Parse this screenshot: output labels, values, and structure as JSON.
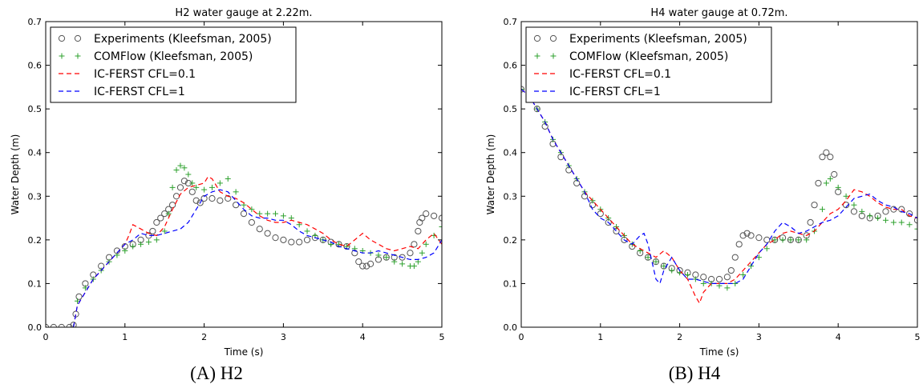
{
  "figure": {
    "captions": [
      "(A) H2",
      "(B) H4"
    ]
  },
  "chart_data": [
    {
      "type": "line",
      "title": "H2 water gauge at 2.22m.",
      "xlabel": "Time (s)",
      "ylabel": "Water Depth (m)",
      "xlim": [
        0,
        5
      ],
      "ylim": [
        0,
        0.7
      ],
      "xticks": [
        "0",
        "1",
        "2",
        "3",
        "4",
        "5"
      ],
      "yticks": [
        "0.0",
        "0.1",
        "0.2",
        "0.3",
        "0.4",
        "0.5",
        "0.6",
        "0.7"
      ],
      "grid": false,
      "legend_position": "top-left",
      "series": [
        {
          "name": "Experiments (Kleefsman, 2005)",
          "marker": "circle",
          "color": "#555555",
          "x": [
            0.0,
            0.1,
            0.2,
            0.3,
            0.35,
            0.38,
            0.42,
            0.5,
            0.6,
            0.7,
            0.8,
            0.9,
            1.0,
            1.1,
            1.2,
            1.3,
            1.35,
            1.4,
            1.45,
            1.5,
            1.55,
            1.6,
            1.65,
            1.7,
            1.75,
            1.8,
            1.85,
            1.9,
            1.95,
            2.0,
            2.1,
            2.2,
            2.3,
            2.4,
            2.5,
            2.6,
            2.7,
            2.8,
            2.9,
            3.0,
            3.1,
            3.2,
            3.3,
            3.4,
            3.5,
            3.6,
            3.7,
            3.8,
            3.9,
            3.95,
            4.0,
            4.05,
            4.1,
            4.2,
            4.3,
            4.4,
            4.5,
            4.6,
            4.65,
            4.7,
            4.72,
            4.75,
            4.8,
            4.9,
            5.0
          ],
          "y": [
            0.0,
            0.0,
            0.0,
            0.0,
            0.005,
            0.03,
            0.07,
            0.1,
            0.12,
            0.14,
            0.16,
            0.175,
            0.185,
            0.19,
            0.2,
            0.21,
            0.22,
            0.24,
            0.25,
            0.26,
            0.27,
            0.28,
            0.3,
            0.32,
            0.335,
            0.33,
            0.31,
            0.29,
            0.285,
            0.295,
            0.295,
            0.29,
            0.295,
            0.28,
            0.26,
            0.24,
            0.225,
            0.215,
            0.205,
            0.2,
            0.195,
            0.195,
            0.2,
            0.205,
            0.2,
            0.195,
            0.19,
            0.185,
            0.17,
            0.15,
            0.14,
            0.14,
            0.145,
            0.155,
            0.16,
            0.16,
            0.16,
            0.17,
            0.19,
            0.22,
            0.24,
            0.25,
            0.26,
            0.255,
            0.25
          ]
        },
        {
          "name": "COMFlow (Kleefsman, 2005)",
          "marker": "plus",
          "color": "#2ca02c",
          "x": [
            0.35,
            0.4,
            0.5,
            0.6,
            0.7,
            0.8,
            0.9,
            1.0,
            1.1,
            1.2,
            1.3,
            1.4,
            1.5,
            1.55,
            1.6,
            1.65,
            1.7,
            1.75,
            1.8,
            1.85,
            1.9,
            2.0,
            2.1,
            2.2,
            2.3,
            2.4,
            2.5,
            2.6,
            2.7,
            2.8,
            2.9,
            3.0,
            3.1,
            3.2,
            3.3,
            3.4,
            3.5,
            3.6,
            3.7,
            3.8,
            3.9,
            4.0,
            4.1,
            4.2,
            4.3,
            4.4,
            4.5,
            4.6,
            4.65,
            4.7,
            4.75,
            4.8,
            4.9,
            5.0
          ],
          "y": [
            0.0,
            0.06,
            0.09,
            0.11,
            0.13,
            0.15,
            0.165,
            0.175,
            0.185,
            0.19,
            0.195,
            0.2,
            0.22,
            0.26,
            0.32,
            0.36,
            0.37,
            0.365,
            0.35,
            0.33,
            0.32,
            0.315,
            0.32,
            0.33,
            0.34,
            0.31,
            0.28,
            0.27,
            0.26,
            0.26,
            0.26,
            0.255,
            0.25,
            0.235,
            0.22,
            0.21,
            0.2,
            0.19,
            0.19,
            0.185,
            0.18,
            0.175,
            0.17,
            0.165,
            0.16,
            0.15,
            0.145,
            0.14,
            0.14,
            0.15,
            0.17,
            0.19,
            0.21,
            0.23
          ]
        },
        {
          "name": "IC-FERST CFL=0.1",
          "marker": "dash",
          "color": "#ff0000",
          "x": [
            0.35,
            0.4,
            0.5,
            0.6,
            0.7,
            0.8,
            0.9,
            1.0,
            1.05,
            1.1,
            1.2,
            1.3,
            1.4,
            1.5,
            1.6,
            1.7,
            1.8,
            1.9,
            2.0,
            2.05,
            2.1,
            2.2,
            2.3,
            2.4,
            2.5,
            2.6,
            2.7,
            2.8,
            2.9,
            3.0,
            3.1,
            3.2,
            3.3,
            3.4,
            3.5,
            3.6,
            3.7,
            3.8,
            3.9,
            4.0,
            4.1,
            4.2,
            4.3,
            4.4,
            4.5,
            4.6,
            4.7,
            4.8,
            4.9,
            5.0
          ],
          "y": [
            0.0,
            0.05,
            0.08,
            0.11,
            0.13,
            0.15,
            0.17,
            0.19,
            0.21,
            0.235,
            0.225,
            0.215,
            0.21,
            0.23,
            0.27,
            0.305,
            0.32,
            0.325,
            0.33,
            0.345,
            0.34,
            0.31,
            0.3,
            0.295,
            0.285,
            0.27,
            0.255,
            0.245,
            0.24,
            0.24,
            0.245,
            0.24,
            0.235,
            0.225,
            0.215,
            0.2,
            0.19,
            0.185,
            0.2,
            0.215,
            0.2,
            0.19,
            0.18,
            0.175,
            0.18,
            0.185,
            0.18,
            0.2,
            0.215,
            0.19
          ]
        },
        {
          "name": "IC-FERST CFL=1",
          "marker": "dash",
          "color": "#0000ff",
          "x": [
            0.35,
            0.4,
            0.5,
            0.6,
            0.7,
            0.8,
            0.9,
            1.0,
            1.1,
            1.2,
            1.3,
            1.4,
            1.5,
            1.6,
            1.7,
            1.8,
            1.9,
            2.0,
            2.1,
            2.2,
            2.3,
            2.4,
            2.5,
            2.6,
            2.7,
            2.8,
            2.9,
            3.0,
            3.1,
            3.2,
            3.3,
            3.4,
            3.5,
            3.6,
            3.7,
            3.8,
            3.9,
            4.0,
            4.1,
            4.2,
            4.3,
            4.4,
            4.5,
            4.6,
            4.7,
            4.8,
            4.9,
            5.0
          ],
          "y": [
            0.0,
            0.05,
            0.08,
            0.11,
            0.13,
            0.15,
            0.17,
            0.19,
            0.2,
            0.215,
            0.21,
            0.21,
            0.215,
            0.22,
            0.225,
            0.24,
            0.27,
            0.3,
            0.31,
            0.315,
            0.31,
            0.29,
            0.27,
            0.255,
            0.25,
            0.25,
            0.245,
            0.245,
            0.235,
            0.22,
            0.21,
            0.205,
            0.2,
            0.195,
            0.185,
            0.18,
            0.175,
            0.17,
            0.17,
            0.175,
            0.17,
            0.165,
            0.16,
            0.155,
            0.155,
            0.16,
            0.17,
            0.2
          ]
        }
      ]
    },
    {
      "type": "line",
      "title": "H4 water gauge at 0.72m.",
      "xlabel": "Time (s)",
      "ylabel": "Water Depth (m)",
      "xlim": [
        0,
        5
      ],
      "ylim": [
        0,
        0.7
      ],
      "xticks": [
        "0",
        "1",
        "2",
        "3",
        "4",
        "5"
      ],
      "yticks": [
        "0.0",
        "0.1",
        "0.2",
        "0.3",
        "0.4",
        "0.5",
        "0.6",
        "0.7"
      ],
      "grid": false,
      "legend_position": "top-left",
      "series": [
        {
          "name": "Experiments (Kleefsman, 2005)",
          "marker": "circle",
          "color": "#555555",
          "x": [
            0.0,
            0.1,
            0.2,
            0.3,
            0.4,
            0.5,
            0.6,
            0.7,
            0.8,
            0.9,
            1.0,
            1.1,
            1.2,
            1.3,
            1.4,
            1.5,
            1.6,
            1.7,
            1.8,
            1.9,
            2.0,
            2.1,
            2.2,
            2.3,
            2.4,
            2.5,
            2.6,
            2.65,
            2.7,
            2.75,
            2.8,
            2.85,
            2.9,
            3.0,
            3.1,
            3.2,
            3.3,
            3.4,
            3.5,
            3.6,
            3.65,
            3.7,
            3.75,
            3.8,
            3.85,
            3.9,
            3.95,
            4.0,
            4.1,
            4.2,
            4.3,
            4.4,
            4.5,
            4.6,
            4.7,
            4.8,
            4.9,
            5.0
          ],
          "y": [
            0.545,
            0.53,
            0.5,
            0.46,
            0.42,
            0.39,
            0.36,
            0.33,
            0.3,
            0.28,
            0.26,
            0.24,
            0.22,
            0.2,
            0.185,
            0.17,
            0.16,
            0.15,
            0.14,
            0.135,
            0.13,
            0.125,
            0.12,
            0.115,
            0.11,
            0.11,
            0.115,
            0.13,
            0.16,
            0.19,
            0.21,
            0.215,
            0.21,
            0.205,
            0.2,
            0.2,
            0.205,
            0.2,
            0.2,
            0.21,
            0.24,
            0.28,
            0.33,
            0.39,
            0.4,
            0.39,
            0.35,
            0.31,
            0.28,
            0.265,
            0.255,
            0.25,
            0.255,
            0.265,
            0.27,
            0.27,
            0.26,
            0.245
          ]
        },
        {
          "name": "COMFlow (Kleefsman, 2005)",
          "marker": "plus",
          "color": "#2ca02c",
          "x": [
            0.0,
            0.1,
            0.2,
            0.3,
            0.4,
            0.5,
            0.6,
            0.7,
            0.8,
            0.9,
            1.0,
            1.1,
            1.2,
            1.3,
            1.4,
            1.5,
            1.6,
            1.7,
            1.8,
            1.9,
            2.0,
            2.1,
            2.2,
            2.3,
            2.4,
            2.5,
            2.6,
            2.7,
            2.8,
            2.9,
            3.0,
            3.1,
            3.2,
            3.3,
            3.4,
            3.5,
            3.6,
            3.7,
            3.8,
            3.85,
            3.9,
            4.0,
            4.1,
            4.2,
            4.3,
            4.4,
            4.5,
            4.6,
            4.7,
            4.8,
            4.9,
            5.0
          ],
          "y": [
            0.545,
            0.53,
            0.5,
            0.47,
            0.43,
            0.4,
            0.37,
            0.34,
            0.31,
            0.29,
            0.27,
            0.25,
            0.23,
            0.21,
            0.19,
            0.175,
            0.16,
            0.15,
            0.14,
            0.13,
            0.125,
            0.12,
            0.11,
            0.1,
            0.1,
            0.095,
            0.09,
            0.1,
            0.12,
            0.14,
            0.16,
            0.18,
            0.2,
            0.2,
            0.2,
            0.2,
            0.2,
            0.22,
            0.27,
            0.33,
            0.34,
            0.32,
            0.3,
            0.28,
            0.265,
            0.255,
            0.25,
            0.245,
            0.24,
            0.24,
            0.235,
            0.225
          ]
        },
        {
          "name": "IC-FERST CFL=0.1",
          "marker": "dash",
          "color": "#ff0000",
          "x": [
            0.0,
            0.1,
            0.2,
            0.3,
            0.4,
            0.5,
            0.6,
            0.7,
            0.8,
            0.9,
            1.0,
            1.1,
            1.2,
            1.3,
            1.4,
            1.5,
            1.6,
            1.7,
            1.8,
            1.9,
            2.0,
            2.1,
            2.2,
            2.25,
            2.3,
            2.4,
            2.5,
            2.6,
            2.7,
            2.8,
            2.9,
            3.0,
            3.1,
            3.2,
            3.3,
            3.4,
            3.5,
            3.6,
            3.7,
            3.8,
            3.9,
            4.0,
            4.1,
            4.2,
            4.3,
            4.4,
            4.5,
            4.6,
            4.7,
            4.8,
            4.9,
            5.0
          ],
          "y": [
            0.545,
            0.53,
            0.5,
            0.47,
            0.43,
            0.4,
            0.37,
            0.34,
            0.31,
            0.29,
            0.27,
            0.25,
            0.23,
            0.21,
            0.19,
            0.18,
            0.17,
            0.16,
            0.175,
            0.16,
            0.13,
            0.11,
            0.07,
            0.055,
            0.08,
            0.1,
            0.1,
            0.1,
            0.11,
            0.13,
            0.15,
            0.17,
            0.19,
            0.2,
            0.215,
            0.22,
            0.215,
            0.21,
            0.22,
            0.24,
            0.26,
            0.27,
            0.29,
            0.315,
            0.31,
            0.3,
            0.285,
            0.275,
            0.27,
            0.27,
            0.255,
            0.25
          ]
        },
        {
          "name": "IC-FERST CFL=1",
          "marker": "dash",
          "color": "#0000ff",
          "x": [
            0.0,
            0.1,
            0.2,
            0.3,
            0.4,
            0.5,
            0.6,
            0.7,
            0.8,
            0.9,
            1.0,
            1.1,
            1.2,
            1.3,
            1.4,
            1.5,
            1.55,
            1.6,
            1.7,
            1.75,
            1.8,
            1.9,
            2.0,
            2.1,
            2.2,
            2.3,
            2.4,
            2.5,
            2.6,
            2.7,
            2.8,
            2.9,
            3.0,
            3.1,
            3.2,
            3.3,
            3.4,
            3.5,
            3.6,
            3.7,
            3.8,
            3.9,
            4.0,
            4.1,
            4.2,
            4.3,
            4.4,
            4.5,
            4.6,
            4.7,
            4.8,
            4.9,
            5.0
          ],
          "y": [
            0.545,
            0.53,
            0.5,
            0.47,
            0.43,
            0.4,
            0.37,
            0.34,
            0.31,
            0.27,
            0.25,
            0.24,
            0.22,
            0.2,
            0.19,
            0.21,
            0.215,
            0.19,
            0.11,
            0.1,
            0.13,
            0.16,
            0.13,
            0.11,
            0.11,
            0.105,
            0.1,
            0.1,
            0.1,
            0.1,
            0.11,
            0.14,
            0.17,
            0.19,
            0.22,
            0.24,
            0.23,
            0.215,
            0.22,
            0.23,
            0.24,
            0.245,
            0.255,
            0.275,
            0.295,
            0.3,
            0.305,
            0.29,
            0.28,
            0.275,
            0.265,
            0.26,
            0.25
          ]
        }
      ]
    }
  ]
}
